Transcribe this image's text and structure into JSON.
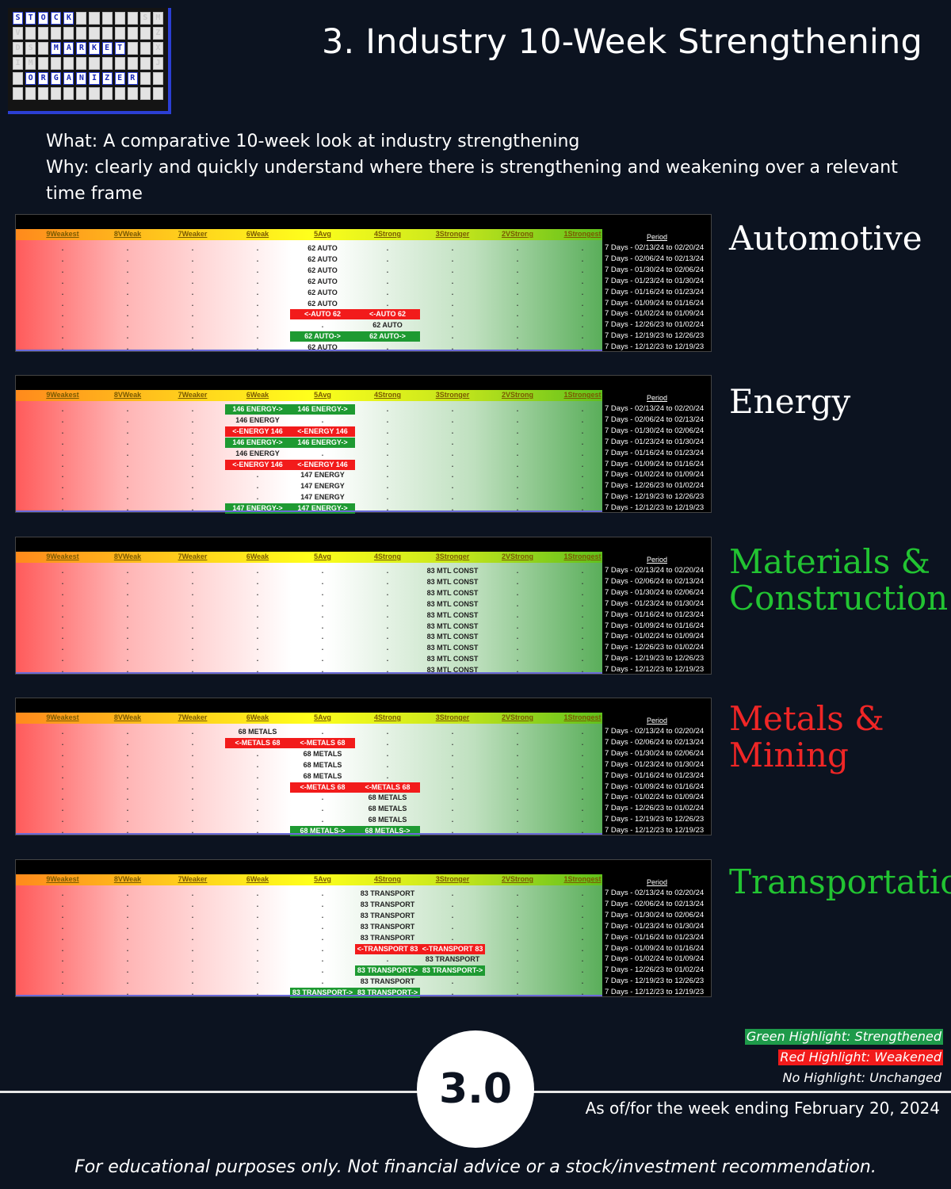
{
  "logo": {
    "rows": [
      [
        "S",
        "T",
        "O",
        "C",
        "K",
        "",
        "",
        "",
        "",
        "",
        "S",
        "M"
      ],
      [
        "V",
        "",
        "",
        "",
        "",
        "",
        "",
        "",
        "",
        "",
        "",
        "Z"
      ],
      [
        "D",
        "S",
        "",
        "M",
        "A",
        "R",
        "K",
        "E",
        "T",
        "",
        "",
        "X"
      ],
      [
        "I",
        "M",
        "",
        "",
        "",
        "",
        "",
        "",
        "",
        "",
        "",
        "J"
      ],
      [
        "",
        "O",
        "R",
        "G",
        "A",
        "N",
        "I",
        "Z",
        "E",
        "R",
        "",
        ""
      ],
      [
        "",
        "",
        "",
        "",
        "",
        "",
        "",
        "",
        "",
        "",
        "",
        ""
      ]
    ],
    "highlight_rows": [
      0,
      2,
      4
    ],
    "words": [
      "STOCK",
      "MARKET",
      "ORGANIZER"
    ]
  },
  "title": "3. Industry 10-Week Strengthening",
  "intro": {
    "what": "What: A comparative 10-week look at industry strengthening",
    "why": "Why: clearly and quickly understand where there is strengthening and weakening over a relevant time frame"
  },
  "columns": [
    "9Weakest",
    "8VWeak",
    "7Weaker",
    "6Weak",
    "5Avg",
    "4Strong",
    "3Stronger",
    "2VStrong",
    "1Strongest"
  ],
  "period_header": "Period",
  "periods": [
    "7 Days - 02/13/24 to 02/20/24",
    "7 Days - 02/06/24 to 02/13/24",
    "7 Days - 01/30/24 to 02/06/24",
    "7 Days - 01/23/24 to 01/30/24",
    "7 Days - 01/16/24 to 01/23/24",
    "7 Days - 01/09/24 to 01/16/24",
    "7 Days - 01/02/24 to 01/09/24",
    "7 Days - 12/26/23 to 01/02/24",
    "7 Days - 12/19/23 to 12/26/23",
    "7 Days - 12/12/23 to 12/19/23"
  ],
  "panels": [
    {
      "name": "Automotive",
      "color": "#ffffff",
      "rows": [
        [
          {
            "c": 4,
            "t": "62 AUTO",
            "s": "none"
          }
        ],
        [
          {
            "c": 4,
            "t": "62 AUTO",
            "s": "none"
          }
        ],
        [
          {
            "c": 4,
            "t": "62 AUTO",
            "s": "none"
          }
        ],
        [
          {
            "c": 4,
            "t": "62 AUTO",
            "s": "none"
          }
        ],
        [
          {
            "c": 4,
            "t": "62 AUTO",
            "s": "none"
          }
        ],
        [
          {
            "c": 4,
            "t": "62 AUTO",
            "s": "none"
          }
        ],
        [
          {
            "c": 4,
            "t": "<-AUTO 62",
            "s": "red"
          },
          {
            "c": 5,
            "t": "<-AUTO 62",
            "s": "red"
          }
        ],
        [
          {
            "c": 5,
            "t": "62 AUTO",
            "s": "none"
          }
        ],
        [
          {
            "c": 4,
            "t": "62 AUTO->",
            "s": "green"
          },
          {
            "c": 5,
            "t": "62 AUTO->",
            "s": "green"
          }
        ],
        [
          {
            "c": 4,
            "t": "62 AUTO",
            "s": "none"
          }
        ]
      ]
    },
    {
      "name": "Energy",
      "color": "#ffffff",
      "rows": [
        [
          {
            "c": 3,
            "t": "146 ENERGY->",
            "s": "green"
          },
          {
            "c": 4,
            "t": "146 ENERGY->",
            "s": "green"
          }
        ],
        [
          {
            "c": 3,
            "t": "146 ENERGY",
            "s": "none"
          }
        ],
        [
          {
            "c": 3,
            "t": "<-ENERGY 146",
            "s": "red"
          },
          {
            "c": 4,
            "t": "<-ENERGY 146",
            "s": "red"
          }
        ],
        [
          {
            "c": 3,
            "t": "146 ENERGY->",
            "s": "green"
          },
          {
            "c": 4,
            "t": "146 ENERGY->",
            "s": "green"
          }
        ],
        [
          {
            "c": 3,
            "t": "146 ENERGY",
            "s": "none"
          }
        ],
        [
          {
            "c": 3,
            "t": "<-ENERGY 146",
            "s": "red"
          },
          {
            "c": 4,
            "t": "<-ENERGY 146",
            "s": "red"
          }
        ],
        [
          {
            "c": 4,
            "t": "147 ENERGY",
            "s": "none"
          }
        ],
        [
          {
            "c": 4,
            "t": "147 ENERGY",
            "s": "none"
          }
        ],
        [
          {
            "c": 4,
            "t": "147 ENERGY",
            "s": "none"
          }
        ],
        [
          {
            "c": 3,
            "t": "147 ENERGY->",
            "s": "green"
          },
          {
            "c": 4,
            "t": "147 ENERGY->",
            "s": "green"
          }
        ]
      ]
    },
    {
      "name": "Materials & Construction",
      "color": "#22c432",
      "rows": [
        [
          {
            "c": 6,
            "t": "83 MTL CONST",
            "s": "none"
          }
        ],
        [
          {
            "c": 6,
            "t": "83 MTL CONST",
            "s": "none"
          }
        ],
        [
          {
            "c": 6,
            "t": "83 MTL CONST",
            "s": "none"
          }
        ],
        [
          {
            "c": 6,
            "t": "83 MTL CONST",
            "s": "none"
          }
        ],
        [
          {
            "c": 6,
            "t": "83 MTL CONST",
            "s": "none"
          }
        ],
        [
          {
            "c": 6,
            "t": "83 MTL CONST",
            "s": "none"
          }
        ],
        [
          {
            "c": 6,
            "t": "83 MTL CONST",
            "s": "none"
          }
        ],
        [
          {
            "c": 6,
            "t": "83 MTL CONST",
            "s": "none"
          }
        ],
        [
          {
            "c": 6,
            "t": "83 MTL CONST",
            "s": "none"
          }
        ],
        [
          {
            "c": 6,
            "t": "83 MTL CONST",
            "s": "none"
          }
        ]
      ]
    },
    {
      "name": "Metals & Mining",
      "color": "#f02626",
      "rows": [
        [
          {
            "c": 3,
            "t": "68 METALS",
            "s": "none"
          }
        ],
        [
          {
            "c": 3,
            "t": "<-METALS 68",
            "s": "red"
          },
          {
            "c": 4,
            "t": "<-METALS 68",
            "s": "red"
          }
        ],
        [
          {
            "c": 4,
            "t": "68 METALS",
            "s": "none"
          }
        ],
        [
          {
            "c": 4,
            "t": "68 METALS",
            "s": "none"
          }
        ],
        [
          {
            "c": 4,
            "t": "68 METALS",
            "s": "none"
          }
        ],
        [
          {
            "c": 4,
            "t": "<-METALS 68",
            "s": "red"
          },
          {
            "c": 5,
            "t": "<-METALS 68",
            "s": "red"
          }
        ],
        [
          {
            "c": 5,
            "t": "68 METALS",
            "s": "none"
          }
        ],
        [
          {
            "c": 5,
            "t": "68 METALS",
            "s": "none"
          }
        ],
        [
          {
            "c": 5,
            "t": "68 METALS",
            "s": "none"
          }
        ],
        [
          {
            "c": 4,
            "t": "68 METALS->",
            "s": "green"
          },
          {
            "c": 5,
            "t": "68 METALS->",
            "s": "green"
          }
        ]
      ]
    },
    {
      "name": "Transportation",
      "color": "#22c432",
      "rows": [
        [
          {
            "c": 5,
            "t": "83 TRANSPORT",
            "s": "none"
          }
        ],
        [
          {
            "c": 5,
            "t": "83 TRANSPORT",
            "s": "none"
          }
        ],
        [
          {
            "c": 5,
            "t": "83 TRANSPORT",
            "s": "none"
          }
        ],
        [
          {
            "c": 5,
            "t": "83 TRANSPORT",
            "s": "none"
          }
        ],
        [
          {
            "c": 5,
            "t": "83 TRANSPORT",
            "s": "none"
          }
        ],
        [
          {
            "c": 5,
            "t": "<-TRANSPORT 83",
            "s": "red"
          },
          {
            "c": 6,
            "t": "<-TRANSPORT 83",
            "s": "red"
          }
        ],
        [
          {
            "c": 6,
            "t": "83 TRANSPORT",
            "s": "none"
          }
        ],
        [
          {
            "c": 5,
            "t": "83 TRANSPORT->",
            "s": "green"
          },
          {
            "c": 6,
            "t": "83 TRANSPORT->",
            "s": "green"
          }
        ],
        [
          {
            "c": 5,
            "t": "83 TRANSPORT",
            "s": "none"
          }
        ],
        [
          {
            "c": 4,
            "t": "83 TRANSPORT->",
            "s": "green"
          },
          {
            "c": 5,
            "t": "83 TRANSPORT->",
            "s": "green"
          }
        ]
      ]
    }
  ],
  "legend": {
    "green": {
      "text": "Green Highlight: Strengthened",
      "color": "#1e9a4a"
    },
    "red": {
      "text": "Red Highlight: Weakened",
      "color": "#f21b1b"
    },
    "none": {
      "text": "No Highlight: Unchanged"
    }
  },
  "badge": "3.0",
  "as_of": "As of/for the week ending February 20, 2024",
  "disclaimer": "For educational purposes only. Not financial advice or a stock/investment recommendation."
}
